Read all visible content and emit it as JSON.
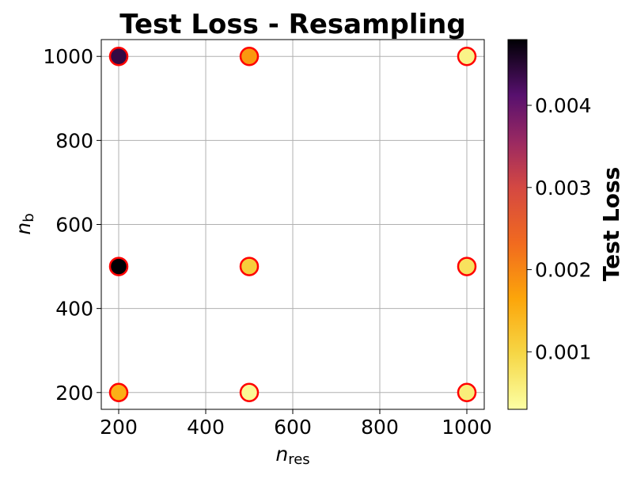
{
  "chart_data": {
    "type": "scatter",
    "title": "Test Loss - Resampling",
    "xlabel": {
      "base": "n",
      "sub": "res"
    },
    "ylabel": {
      "base": "n",
      "sub": "b"
    },
    "xlim": [
      160,
      1040
    ],
    "ylim": [
      160,
      1040
    ],
    "xticks": [
      200,
      400,
      600,
      800,
      1000
    ],
    "yticks": [
      200,
      400,
      600,
      800,
      1000
    ],
    "grid": true,
    "marker_edge_color": "#ff0000",
    "colormap": "inferno_r",
    "colorbar": {
      "label": "Test Loss",
      "min": 0.0003,
      "max": 0.0048,
      "ticks": [
        "0.001",
        "0.002",
        "0.003",
        "0.004"
      ]
    },
    "points": [
      {
        "x": 200,
        "y": 1000,
        "value": 0.0044
      },
      {
        "x": 500,
        "y": 1000,
        "value": 0.0018
      },
      {
        "x": 1000,
        "y": 1000,
        "value": 0.0005
      },
      {
        "x": 200,
        "y": 500,
        "value": 0.0048
      },
      {
        "x": 500,
        "y": 500,
        "value": 0.0011
      },
      {
        "x": 1000,
        "y": 500,
        "value": 0.0008
      },
      {
        "x": 200,
        "y": 200,
        "value": 0.0015
      },
      {
        "x": 500,
        "y": 200,
        "value": 0.0004
      },
      {
        "x": 1000,
        "y": 200,
        "value": 0.0006
      }
    ]
  }
}
